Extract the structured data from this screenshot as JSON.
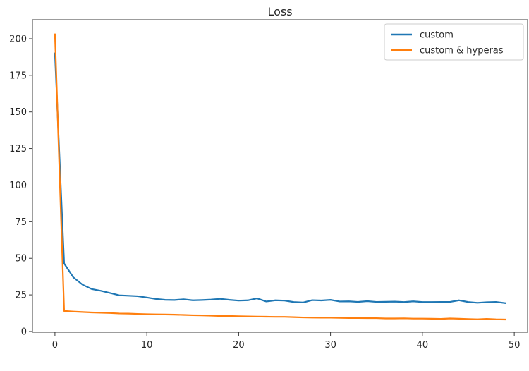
{
  "chart_data": {
    "type": "line",
    "title": "Loss",
    "xlabel": "",
    "ylabel": "",
    "xlim": [
      -2.45,
      51.45
    ],
    "ylim": [
      -0.5,
      213
    ],
    "xticks": [
      0,
      10,
      20,
      30,
      40,
      50
    ],
    "yticks": [
      0,
      25,
      50,
      75,
      100,
      125,
      150,
      175,
      200
    ],
    "grid": false,
    "legend_position": "top-right",
    "series": [
      {
        "name": "custom",
        "color": "#1f77b4",
        "x": [
          0,
          1,
          2,
          3,
          4,
          5,
          6,
          7,
          8,
          9,
          10,
          11,
          12,
          13,
          14,
          15,
          16,
          17,
          18,
          19,
          20,
          21,
          22,
          23,
          24,
          25,
          26,
          27,
          28,
          29,
          30,
          31,
          32,
          33,
          34,
          35,
          36,
          37,
          38,
          39,
          40,
          41,
          42,
          43,
          44,
          45,
          46,
          47,
          48,
          49
        ],
        "values": [
          190,
          46.5,
          37,
          32,
          29,
          27.8,
          26.3,
          24.7,
          24.4,
          24.1,
          23.2,
          22.2,
          21.6,
          21.5,
          22.0,
          21.3,
          21.5,
          21.8,
          22.3,
          21.6,
          21.1,
          21.3,
          22.6,
          20.5,
          21.3,
          21.1,
          20.1,
          19.8,
          21.4,
          21.2,
          21.6,
          20.5,
          20.6,
          20.2,
          20.7,
          20.2,
          20.3,
          20.4,
          20.1,
          20.6,
          20.1,
          20.1,
          20.2,
          20.2,
          21.3,
          20.1,
          19.6,
          20.0,
          20.2,
          19.4
        ]
      },
      {
        "name": "custom & hyperas",
        "color": "#ff7f0e",
        "x": [
          0,
          1,
          2,
          3,
          4,
          5,
          6,
          7,
          8,
          9,
          10,
          11,
          12,
          13,
          14,
          15,
          16,
          17,
          18,
          19,
          20,
          21,
          22,
          23,
          24,
          25,
          26,
          27,
          28,
          29,
          30,
          31,
          32,
          33,
          34,
          35,
          36,
          37,
          38,
          39,
          40,
          41,
          42,
          43,
          44,
          45,
          46,
          47,
          48,
          49
        ],
        "values": [
          203,
          14,
          13.6,
          13.3,
          13.0,
          12.8,
          12.6,
          12.3,
          12.2,
          12.0,
          11.8,
          11.7,
          11.6,
          11.5,
          11.3,
          11.1,
          11.0,
          10.8,
          10.6,
          10.6,
          10.4,
          10.3,
          10.2,
          10.1,
          10.0,
          10.0,
          9.8,
          9.6,
          9.5,
          9.4,
          9.4,
          9.3,
          9.2,
          9.2,
          9.1,
          9.1,
          8.9,
          8.9,
          9.0,
          8.8,
          8.8,
          8.7,
          8.6,
          8.9,
          8.7,
          8.5,
          8.3,
          8.6,
          8.3,
          8.2
        ]
      }
    ]
  }
}
